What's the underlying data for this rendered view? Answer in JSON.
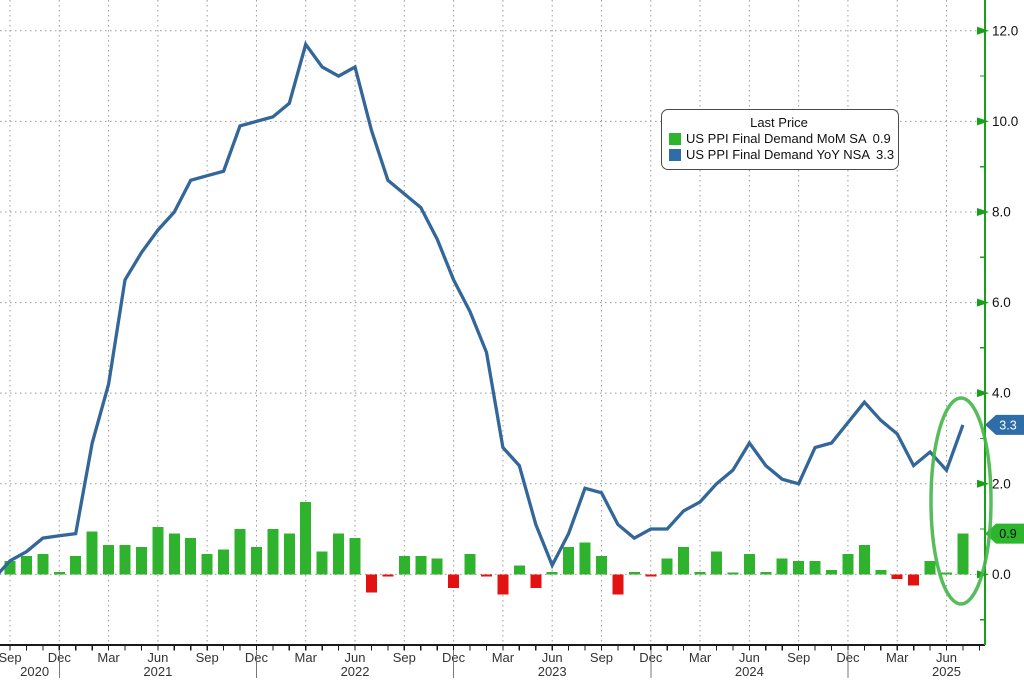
{
  "chart_data": {
    "type": "combo",
    "title": "",
    "legend": {
      "title": "Last Price",
      "series": [
        {
          "label": "US PPI Final Demand MoM SA",
          "value": "0.9",
          "color": "#2db52d"
        },
        {
          "label": "US PPI Final Demand YoY NSA",
          "value": "3.3",
          "color": "#2e6da8"
        }
      ]
    },
    "x": [
      "2020-08",
      "2020-09",
      "2020-10",
      "2020-11",
      "2020-12",
      "2021-01",
      "2021-02",
      "2021-03",
      "2021-04",
      "2021-05",
      "2021-06",
      "2021-07",
      "2021-08",
      "2021-09",
      "2021-10",
      "2021-11",
      "2021-12",
      "2022-01",
      "2022-02",
      "2022-03",
      "2022-04",
      "2022-05",
      "2022-06",
      "2022-07",
      "2022-08",
      "2022-09",
      "2022-10",
      "2022-11",
      "2022-12",
      "2023-01",
      "2023-02",
      "2023-03",
      "2023-04",
      "2023-05",
      "2023-06",
      "2023-07",
      "2023-08",
      "2023-09",
      "2023-10",
      "2023-11",
      "2023-12",
      "2024-01",
      "2024-02",
      "2024-03",
      "2024-04",
      "2024-05",
      "2024-06",
      "2024-07",
      "2024-08",
      "2024-09",
      "2024-10",
      "2024-11",
      "2024-12",
      "2025-01",
      "2025-02",
      "2025-03",
      "2025-04",
      "2025-05",
      "2025-06",
      "2025-07"
    ],
    "series": [
      {
        "name": "US PPI Final Demand MoM SA",
        "type": "bar",
        "values": [
          null,
          0.3,
          0.4,
          0.45,
          0.05,
          0.4,
          0.95,
          0.65,
          0.65,
          0.6,
          1.05,
          0.9,
          0.8,
          0.45,
          0.55,
          1.0,
          0.6,
          1.0,
          0.9,
          1.6,
          0.5,
          0.9,
          0.8,
          -0.4,
          -0.05,
          0.4,
          0.4,
          0.35,
          -0.3,
          0.45,
          -0.05,
          -0.45,
          0.2,
          -0.3,
          0.05,
          0.6,
          0.7,
          0.4,
          -0.45,
          0.05,
          -0.05,
          0.35,
          0.6,
          0.05,
          0.5,
          0.0,
          0.45,
          0.05,
          0.35,
          0.3,
          0.3,
          0.1,
          0.45,
          0.65,
          0.1,
          -0.1,
          -0.25,
          0.3,
          0.0,
          0.9
        ]
      },
      {
        "name": "US PPI Final Demand YoY NSA",
        "type": "line",
        "values": [
          -0.1,
          0.3,
          0.5,
          0.8,
          0.85,
          0.9,
          2.9,
          4.2,
          6.5,
          7.1,
          7.6,
          8.0,
          8.7,
          8.8,
          8.9,
          9.9,
          10.0,
          10.1,
          10.4,
          11.7,
          11.2,
          11.0,
          11.2,
          9.8,
          8.7,
          8.4,
          8.1,
          7.4,
          6.5,
          5.8,
          4.9,
          2.8,
          2.4,
          1.1,
          0.2,
          0.9,
          1.9,
          1.8,
          1.1,
          0.8,
          1.0,
          1.0,
          1.4,
          1.6,
          2.0,
          2.3,
          2.9,
          2.4,
          2.1,
          2.0,
          2.8,
          2.9,
          3.35,
          3.8,
          3.4,
          3.1,
          2.4,
          2.7,
          2.3,
          3.3
        ]
      }
    ],
    "y_axis": {
      "side": "right",
      "range": [
        -1.56,
        12.68
      ],
      "ticks": [
        0,
        2,
        4,
        6,
        8,
        10,
        12
      ],
      "tick_labels": [
        "0.0",
        "2.0",
        "4.0",
        "6.0",
        "8.0",
        "10.0",
        "12.0"
      ],
      "minor_step": 1
    },
    "x_axis": {
      "quarter_labels": [
        "Sep",
        "Dec",
        "Mar",
        "Jun",
        "Sep",
        "Dec",
        "Mar",
        "Jun",
        "Sep",
        "Dec",
        "Mar",
        "Jun",
        "Sep",
        "Dec",
        "Mar",
        "Jun",
        "Sep",
        "Dec",
        "Mar",
        "Jun"
      ],
      "year_labels": [
        "2020",
        "2021",
        "2022",
        "2023",
        "2024",
        "2025"
      ]
    },
    "last_price_tags": [
      {
        "value": "3.3",
        "series": "yoy",
        "bg": "#2e6da8",
        "fg": "#ffffff",
        "at": 3.3
      },
      {
        "value": "0.9",
        "series": "mom",
        "bg": "#2db52d",
        "fg": "#0a0a0a",
        "at": 0.9
      }
    ],
    "annotations": [
      {
        "type": "ellipse-highlight",
        "note": "circle around latest two months",
        "color": "#45b649"
      }
    ],
    "grid": "dotted"
  },
  "colors": {
    "background": "#ffffff",
    "bar_up": "#2fb32f",
    "bar_down": "#e31212",
    "line": "#336699",
    "axis_green": "#18a018",
    "axis_black": "#1a1a1a",
    "grid": "#999999",
    "tick_text": "#111111",
    "x_label_text": "#333333",
    "year_divider": "#777777",
    "highlight": "#45b649"
  }
}
